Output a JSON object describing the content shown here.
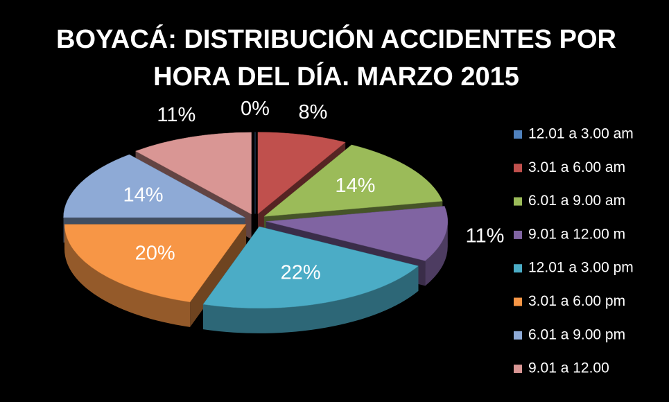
{
  "chart_data": {
    "type": "pie",
    "title": "BOYACÁ: DISTRIBUCIÓN ACCIDENTES POR HORA DEL DÍA. MARZO 2015",
    "categories": [
      "12.01 a 3.00 am",
      "3.01 a 6.00 am",
      "6.01 a 9.00 am",
      "9.01 a 12.00 m",
      "12.01 a 3.00 pm",
      "3.01 a 6.00 pm",
      "6.01 a 9.00 pm",
      "9.01 a 12.00"
    ],
    "values": [
      0,
      8,
      14,
      11,
      22,
      20,
      14,
      11
    ],
    "value_labels": [
      "0%",
      "8%",
      "14%",
      "11%",
      "22%",
      "20%",
      "14%",
      "11%"
    ],
    "colors": [
      "#4f81bd",
      "#c0504d",
      "#9bbb59",
      "#8064a2",
      "#4bacc6",
      "#f79646",
      "#8eaad6",
      "#d99694"
    ],
    "legend": "right"
  }
}
